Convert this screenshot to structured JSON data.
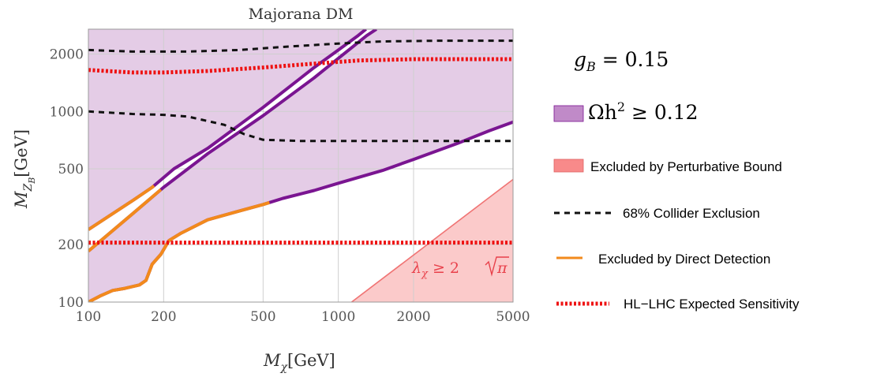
{
  "chart_data": {
    "type": "line",
    "title": "Majorana DM",
    "xlabel": {
      "base": "M",
      "sub": "χ",
      "unit": "[GeV]"
    },
    "ylabel": {
      "base": "M",
      "sub": "Z",
      "subsub": "B",
      "unit": "[GeV]"
    },
    "x_scale": "log",
    "y_scale": "log",
    "xlim": [
      100,
      5000
    ],
    "ylim": [
      100,
      2700
    ],
    "x_ticks": [
      100,
      200,
      500,
      1000,
      2000,
      5000
    ],
    "x_tick_labels": [
      "100",
      "200",
      "500",
      "1000",
      "2000",
      "5000"
    ],
    "y_ticks": [
      100,
      200,
      500,
      1000,
      2000
    ],
    "y_tick_labels": [
      "100",
      "200",
      "500",
      "1000",
      "2000"
    ],
    "grid": true,
    "coupling_label": {
      "base": "g",
      "sub": "B",
      "rest": " = 0.15"
    },
    "annotation": {
      "text": "λ",
      "sub": "χ",
      "rest": " ≥ 2",
      "radicand": "π"
    },
    "colors": {
      "relic_fill": "#e4cce6",
      "relic_line": "#7a1591",
      "perturbative_fill": "#fbcaca",
      "perturbative_line": "#f07474",
      "perturbative_swatch": "#f88a8a",
      "collider": "#111111",
      "direct_detection": "#f28a1c",
      "hl_lhc": "#ee1111",
      "grid": "#cfcfcf"
    },
    "relic_lower_boundary": [
      [
        100,
        100
      ],
      [
        112,
        108
      ],
      [
        125,
        115
      ],
      [
        140,
        118
      ],
      [
        160,
        123
      ],
      [
        170,
        130
      ],
      [
        180,
        158
      ],
      [
        195,
        178
      ],
      [
        210,
        210
      ],
      [
        235,
        230
      ],
      [
        300,
        270
      ],
      [
        400,
        300
      ],
      [
        500,
        325
      ],
      [
        600,
        350
      ],
      [
        800,
        385
      ],
      [
        1000,
        420
      ],
      [
        1500,
        490
      ],
      [
        2000,
        560
      ],
      [
        3000,
        680
      ],
      [
        4000,
        790
      ],
      [
        5000,
        880
      ]
    ],
    "funnel_lines": [
      {
        "points": [
          [
            100,
            185
          ],
          [
            150,
            290
          ],
          [
            200,
            400
          ],
          [
            300,
            600
          ],
          [
            500,
            950
          ],
          [
            800,
            1500
          ],
          [
            1000,
            1900
          ],
          [
            1300,
            2500
          ],
          [
            1420,
            2700
          ]
        ]
      },
      {
        "points": [
          [
            100,
            240
          ],
          [
            150,
            340
          ],
          [
            180,
            400
          ],
          [
            220,
            500
          ],
          [
            300,
            640
          ],
          [
            500,
            1050
          ],
          [
            800,
            1700
          ],
          [
            1000,
            2100
          ],
          [
            1200,
            2500
          ],
          [
            1290,
            2700
          ]
        ]
      }
    ],
    "series": [
      {
        "name": "68% Collider Exclusion",
        "style": "dashed",
        "points": [
          [
            100,
            2100
          ],
          [
            150,
            2060
          ],
          [
            250,
            2060
          ],
          [
            400,
            2100
          ],
          [
            600,
            2180
          ],
          [
            1000,
            2270
          ],
          [
            1500,
            2330
          ],
          [
            2500,
            2350
          ],
          [
            5000,
            2350
          ]
        ]
      },
      {
        "name": "68% Collider Exclusion",
        "style": "dashed",
        "points": [
          [
            100,
            1000
          ],
          [
            150,
            970
          ],
          [
            200,
            960
          ],
          [
            250,
            940
          ],
          [
            350,
            850
          ],
          [
            420,
            760
          ],
          [
            500,
            710
          ],
          [
            700,
            700
          ],
          [
            1000,
            700
          ],
          [
            2000,
            700
          ],
          [
            5000,
            700
          ]
        ]
      },
      {
        "name": "HL−LHC Expected Sensitivity",
        "style": "dotted",
        "points": [
          [
            100,
            1650
          ],
          [
            150,
            1600
          ],
          [
            200,
            1600
          ],
          [
            300,
            1630
          ],
          [
            500,
            1700
          ],
          [
            800,
            1780
          ],
          [
            1200,
            1850
          ],
          [
            2000,
            1880
          ],
          [
            5000,
            1880
          ]
        ]
      },
      {
        "name": "HL−LHC Expected Sensitivity",
        "style": "dotted",
        "points": [
          [
            100,
            205
          ],
          [
            5000,
            205
          ]
        ]
      }
    ],
    "perturbative_bound": {
      "points": [
        [
          1130,
          100
        ],
        [
          5000,
          440
        ],
        [
          5000,
          100
        ]
      ]
    },
    "legend": [
      {
        "kind": "relic",
        "label_math": {
          "base": "Ωh",
          "sup": "2",
          "rest": " ≥ 0.12"
        }
      },
      {
        "kind": "perturbative",
        "label": "Excluded by Perturbative Bound"
      },
      {
        "kind": "collider",
        "label": "68% Collider Exclusion"
      },
      {
        "kind": "direct",
        "label": "Excluded by Direct Detection"
      },
      {
        "kind": "hl_lhc",
        "label": "HL−LHC Expected Sensitivity"
      }
    ]
  }
}
